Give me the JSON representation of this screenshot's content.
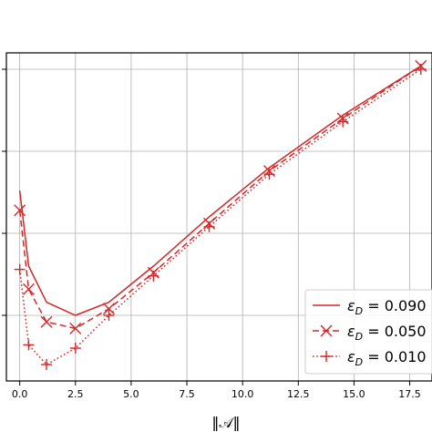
{
  "chart_data": {
    "type": "line",
    "title": "",
    "xlabel": "‖𝒜‖",
    "ylabel": "",
    "xlim": [
      -0.6,
      18.5
    ],
    "ylim": [
      0,
      1
    ],
    "xticks": [
      0.0,
      2.5,
      5.0,
      7.5,
      10.0,
      12.5,
      15.0,
      17.5
    ],
    "xtick_labels": [
      "0.0",
      "2.5",
      "5.0",
      "7.5",
      "10.0",
      "12.5",
      "15.0",
      "17.5"
    ],
    "ytick_positions": [
      0.2,
      0.45,
      0.7,
      0.95
    ],
    "grid": true,
    "legend_position": "bottom-right",
    "color": "#d62728",
    "series": [
      {
        "name": "ε_D = 0.090",
        "label_prefix": "ε",
        "label_sub": "D",
        "label_rest": " = 0.090",
        "style": "solid",
        "marker": "none",
        "x": [
          0.0,
          0.4,
          1.2,
          2.5,
          4.0,
          6.0,
          8.5,
          11.2,
          14.5,
          18.0
        ],
        "y": [
          0.58,
          0.35,
          0.24,
          0.2,
          0.24,
          0.35,
          0.5,
          0.65,
          0.81,
          0.96
        ]
      },
      {
        "name": "ε_D = 0.050",
        "label_prefix": "ε",
        "label_sub": "D",
        "label_rest": " = 0.050",
        "style": "dashed",
        "marker": "x",
        "x": [
          0.0,
          0.4,
          1.2,
          2.5,
          4.0,
          6.0,
          8.5,
          11.2,
          14.5,
          18.0
        ],
        "y": [
          0.52,
          0.28,
          0.18,
          0.16,
          0.22,
          0.33,
          0.48,
          0.64,
          0.8,
          0.96
        ]
      },
      {
        "name": "ε_D = 0.010",
        "label_prefix": "ε",
        "label_sub": "D",
        "label_rest": " = 0.010",
        "style": "dotted",
        "marker": "+",
        "x": [
          0.0,
          0.4,
          1.2,
          2.5,
          4.0,
          6.0,
          8.5,
          11.2,
          14.5,
          18.0
        ],
        "y": [
          0.34,
          0.11,
          0.05,
          0.1,
          0.2,
          0.32,
          0.47,
          0.63,
          0.79,
          0.95
        ]
      }
    ]
  }
}
